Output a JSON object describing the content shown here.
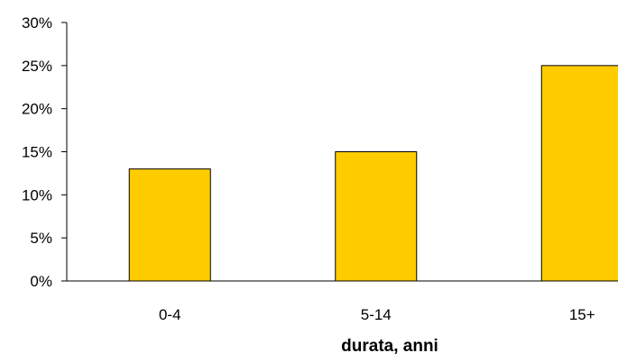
{
  "chart_data": {
    "type": "bar",
    "title": "",
    "xlabel": "durata, anni",
    "ylabel": "",
    "categories": [
      "0-4",
      "5-14",
      "15+"
    ],
    "values": [
      0.13,
      0.15,
      0.25
    ],
    "ylim": [
      0,
      0.3
    ],
    "yticks": [
      0,
      0.05,
      0.1,
      0.15,
      0.2,
      0.25,
      0.3
    ],
    "ytick_labels": [
      "0%",
      "5%",
      "10%",
      "15%",
      "20%",
      "25%",
      "30%"
    ],
    "grid": false,
    "legend": "none",
    "colors": {
      "bar_fill": "#FFCC00",
      "bar_stroke": "#000000",
      "axis": "#000000"
    }
  }
}
